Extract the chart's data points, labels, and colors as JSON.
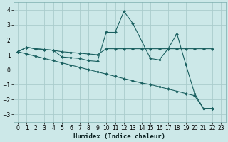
{
  "xlabel": "Humidex (Indice chaleur)",
  "bg_color": "#cce8e8",
  "grid_color": "#aacccc",
  "line_color": "#1a6060",
  "xlim": [
    -0.5,
    23.5
  ],
  "ylim": [
    -3.5,
    4.5
  ],
  "yticks": [
    -3,
    -2,
    -1,
    0,
    1,
    2,
    3,
    4
  ],
  "xticks": [
    0,
    1,
    2,
    3,
    4,
    5,
    6,
    7,
    8,
    9,
    10,
    11,
    12,
    13,
    14,
    15,
    16,
    17,
    18,
    19,
    20,
    21,
    22,
    23
  ],
  "s1_x": [
    0,
    1,
    2,
    3,
    4,
    5,
    6,
    7,
    8,
    9,
    10,
    11,
    12,
    13,
    14,
    15,
    16,
    17,
    18,
    19,
    20,
    21,
    22
  ],
  "s1_y": [
    1.2,
    1.5,
    1.4,
    1.35,
    1.3,
    1.2,
    1.15,
    1.1,
    1.05,
    1.0,
    1.4,
    1.4,
    1.4,
    1.4,
    1.4,
    1.4,
    1.4,
    1.4,
    1.4,
    1.4,
    1.4,
    1.4,
    1.4
  ],
  "s2_x": [
    0,
    1,
    2,
    3,
    4,
    5,
    6,
    7,
    8,
    9,
    10,
    11,
    12,
    13,
    15,
    16,
    17,
    18,
    19,
    20,
    21,
    22
  ],
  "s2_y": [
    1.2,
    1.5,
    1.4,
    1.35,
    1.3,
    0.85,
    0.8,
    0.75,
    0.6,
    0.55,
    2.5,
    2.5,
    3.9,
    3.1,
    0.75,
    0.65,
    1.4,
    2.4,
    0.35,
    -1.6,
    -2.6,
    -2.6
  ],
  "s3_x": [
    0,
    1,
    2,
    3,
    4,
    5,
    6,
    7,
    8,
    9,
    10,
    11,
    12,
    13,
    14,
    15,
    16,
    17,
    18,
    19,
    20,
    21,
    22
  ],
  "s3_y": [
    1.2,
    1.05,
    0.9,
    0.75,
    0.6,
    0.45,
    0.3,
    0.15,
    0.0,
    -0.15,
    -0.3,
    -0.45,
    -0.6,
    -0.75,
    -0.9,
    -1.0,
    -1.15,
    -1.3,
    -1.45,
    -1.6,
    -1.75,
    -2.6,
    -2.6
  ]
}
